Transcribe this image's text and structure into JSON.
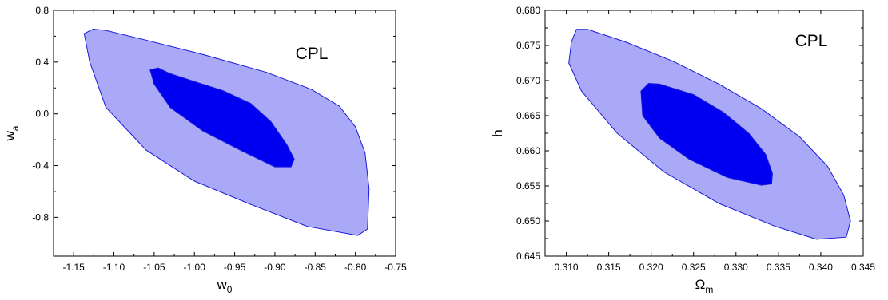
{
  "chart_data": [
    {
      "type": "contour",
      "annotation": "CPL",
      "xlabel": {
        "main": "w",
        "sub": "0"
      },
      "ylabel": {
        "main": "w",
        "sub": "a"
      },
      "xlim": [
        -1.175,
        -0.75
      ],
      "ylim": [
        -1.1,
        0.8
      ],
      "xticks": [
        -1.15,
        -1.1,
        -1.05,
        -1.0,
        -0.95,
        -0.9,
        -0.85,
        -0.8,
        -0.75
      ],
      "xtick_labels": [
        "-1.15",
        "-1.10",
        "-1.05",
        "-1.00",
        "-0.95",
        "-0.90",
        "-0.85",
        "-0.80",
        "-0.75"
      ],
      "yticks": [
        -0.8,
        -0.4,
        0.0,
        0.4,
        0.8
      ],
      "ytick_labels": [
        "-0.8",
        "-0.4",
        "0.0",
        "0.4",
        "0.8"
      ],
      "colors": {
        "outer_fill": "#a9a9f7",
        "inner_fill": "#0000f0",
        "outline": "#1a1ad8"
      },
      "regions": [
        {
          "level": "outer",
          "points": [
            [
              -1.137,
              0.62
            ],
            [
              -1.126,
              0.655
            ],
            [
              -1.11,
              0.645
            ],
            [
              -1.06,
              0.57
            ],
            [
              -0.99,
              0.46
            ],
            [
              -0.91,
              0.32
            ],
            [
              -0.855,
              0.19
            ],
            [
              -0.82,
              0.06
            ],
            [
              -0.8,
              -0.1
            ],
            [
              -0.788,
              -0.3
            ],
            [
              -0.783,
              -0.58
            ],
            [
              -0.785,
              -0.89
            ],
            [
              -0.797,
              -0.94
            ],
            [
              -0.86,
              -0.87
            ],
            [
              -0.93,
              -0.7
            ],
            [
              -1.0,
              -0.52
            ],
            [
              -1.06,
              -0.28
            ],
            [
              -1.11,
              0.05
            ],
            [
              -1.13,
              0.4
            ]
          ]
        },
        {
          "level": "inner",
          "points": [
            [
              -1.055,
              0.34
            ],
            [
              -1.045,
              0.355
            ],
            [
              -1.03,
              0.31
            ],
            [
              -1.0,
              0.25
            ],
            [
              -0.965,
              0.18
            ],
            [
              -0.93,
              0.08
            ],
            [
              -0.905,
              -0.06
            ],
            [
              -0.885,
              -0.24
            ],
            [
              -0.876,
              -0.35
            ],
            [
              -0.88,
              -0.41
            ],
            [
              -0.9,
              -0.41
            ],
            [
              -0.94,
              -0.29
            ],
            [
              -0.99,
              -0.13
            ],
            [
              -1.03,
              0.05
            ],
            [
              -1.05,
              0.23
            ]
          ]
        }
      ]
    },
    {
      "type": "contour",
      "annotation": "CPL",
      "xlabel": {
        "main": "Ω",
        "sub": "m"
      },
      "ylabel": {
        "main": "h",
        "sub": ""
      },
      "xlim": [
        0.3075,
        0.345
      ],
      "ylim": [
        0.645,
        0.68
      ],
      "xticks": [
        0.31,
        0.315,
        0.32,
        0.325,
        0.33,
        0.335,
        0.34,
        0.345
      ],
      "xtick_labels": [
        "0.310",
        "0.315",
        "0.320",
        "0.325",
        "0.330",
        "0.335",
        "0.340",
        "0.345"
      ],
      "yticks": [
        0.645,
        0.65,
        0.655,
        0.66,
        0.665,
        0.67,
        0.675,
        0.68
      ],
      "ytick_labels": [
        "0.645",
        "0.650",
        "0.655",
        "0.660",
        "0.665",
        "0.670",
        "0.675",
        "0.680"
      ],
      "colors": {
        "outer_fill": "#a9a9f7",
        "inner_fill": "#0000f0",
        "outline": "#1a1ad8"
      },
      "regions": [
        {
          "level": "outer",
          "points": [
            [
              0.3106,
              0.6755
            ],
            [
              0.3112,
              0.6773
            ],
            [
              0.3125,
              0.6773
            ],
            [
              0.317,
              0.6755
            ],
            [
              0.3225,
              0.6728
            ],
            [
              0.328,
              0.6695
            ],
            [
              0.333,
              0.666
            ],
            [
              0.3375,
              0.662
            ],
            [
              0.3408,
              0.6578
            ],
            [
              0.3427,
              0.6537
            ],
            [
              0.3435,
              0.65
            ],
            [
              0.343,
              0.6477
            ],
            [
              0.3395,
              0.6474
            ],
            [
              0.3345,
              0.6493
            ],
            [
              0.328,
              0.6525
            ],
            [
              0.3215,
              0.657
            ],
            [
              0.316,
              0.6625
            ],
            [
              0.3118,
              0.6685
            ],
            [
              0.3103,
              0.6725
            ]
          ]
        },
        {
          "level": "inner",
          "points": [
            [
              0.3188,
              0.6685
            ],
            [
              0.3197,
              0.6696
            ],
            [
              0.321,
              0.6695
            ],
            [
              0.325,
              0.668
            ],
            [
              0.3285,
              0.6655
            ],
            [
              0.3315,
              0.6625
            ],
            [
              0.3335,
              0.6595
            ],
            [
              0.3343,
              0.6568
            ],
            [
              0.3342,
              0.6553
            ],
            [
              0.333,
              0.6551
            ],
            [
              0.329,
              0.6562
            ],
            [
              0.3245,
              0.6588
            ],
            [
              0.321,
              0.6618
            ],
            [
              0.319,
              0.665
            ]
          ]
        }
      ]
    }
  ]
}
